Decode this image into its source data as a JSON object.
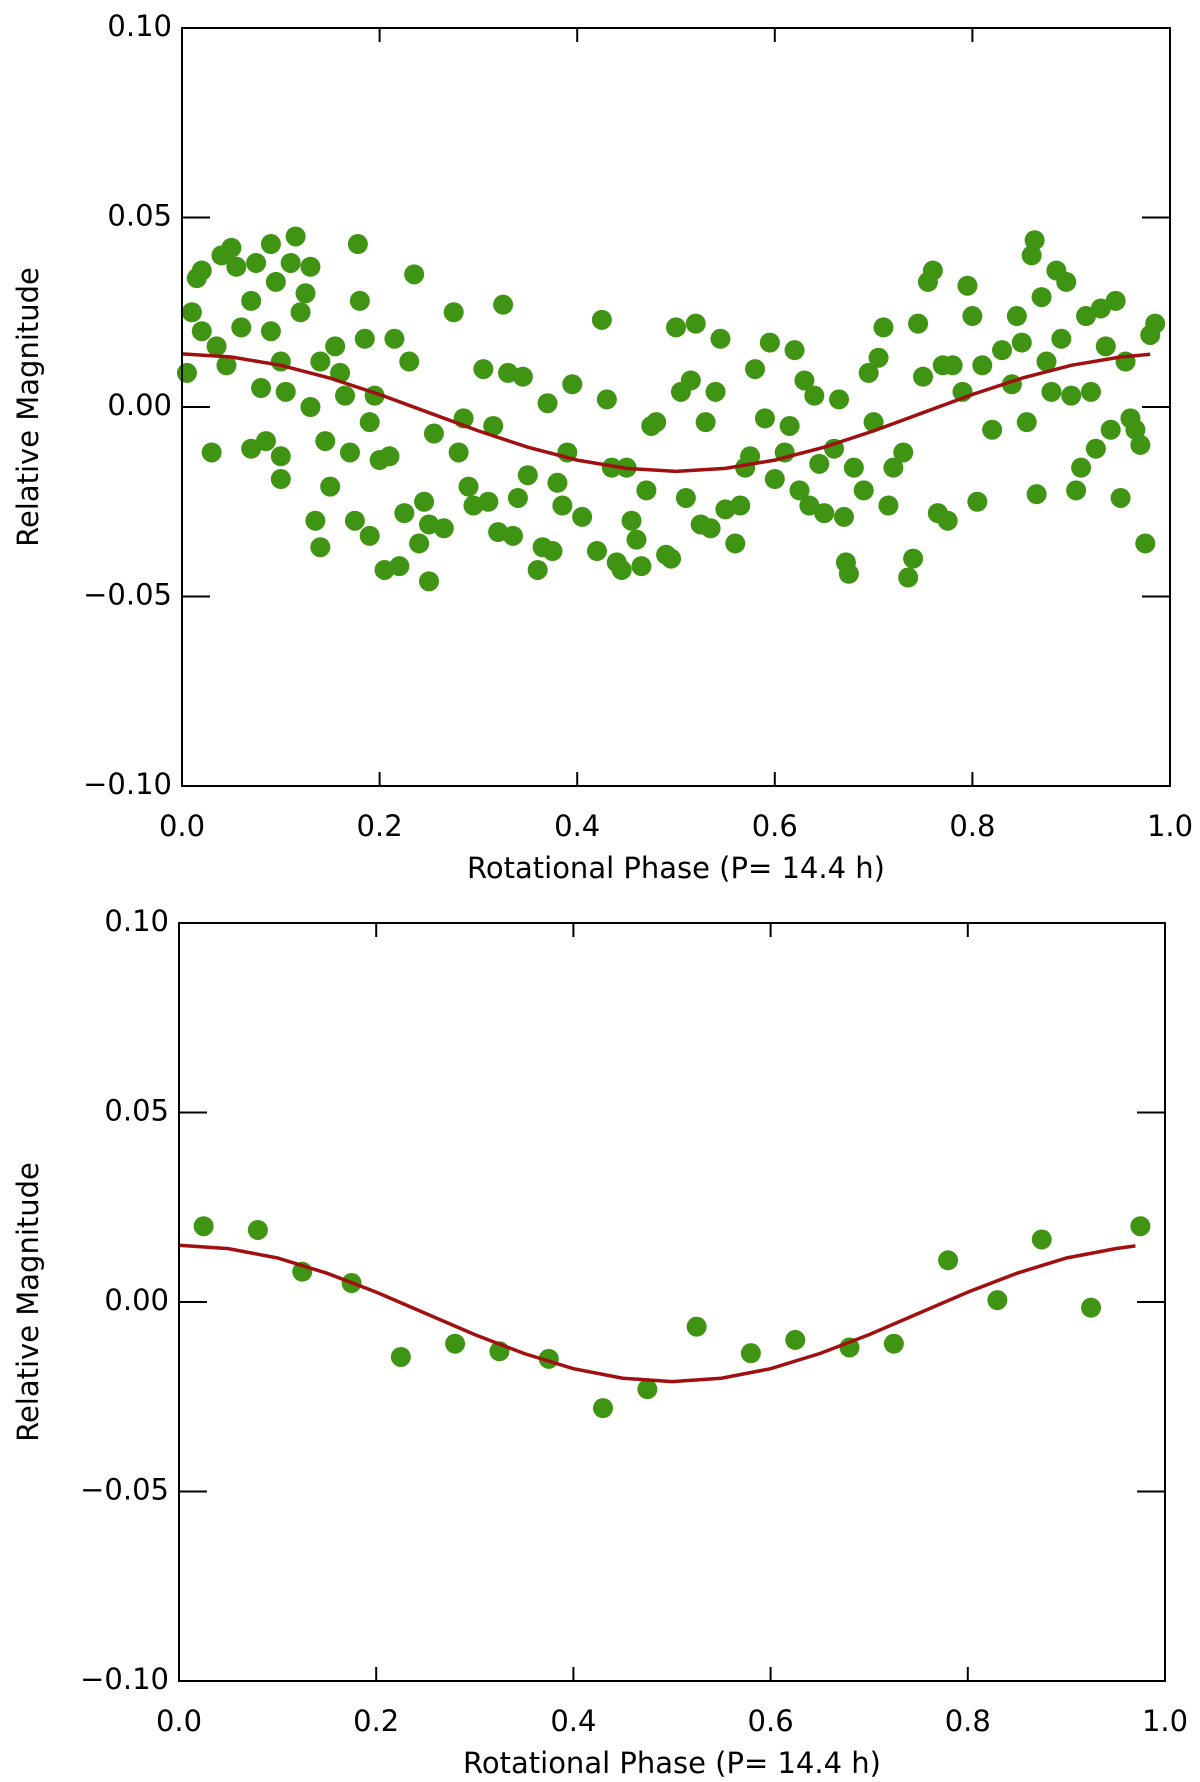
{
  "chart_data": [
    {
      "type": "scatter",
      "xlabel": "Rotational Phase (P= 14.4 h)",
      "ylabel": "Relative Magnitude",
      "xlim": [
        0,
        1
      ],
      "ylim": [
        -0.1,
        0.1
      ],
      "xticks": [
        {
          "value": 0,
          "label": "0.0"
        },
        {
          "value": 0.2,
          "label": "0.2"
        },
        {
          "value": 0.4,
          "label": "0.4"
        },
        {
          "value": 0.6,
          "label": "0.6"
        },
        {
          "value": 0.8,
          "label": "0.8"
        },
        {
          "value": 1,
          "label": "1.0"
        }
      ],
      "yticks": [
        {
          "value": -0.1,
          "label": "−0.10"
        },
        {
          "value": -0.05,
          "label": "−0.05"
        },
        {
          "value": 0,
          "label": "0.00"
        },
        {
          "value": 0.05,
          "label": "0.05"
        },
        {
          "value": 0.1,
          "label": "0.10"
        }
      ],
      "points": {
        "color": "#3f9413",
        "x": [
          0.005,
          0.01,
          0.015,
          0.02,
          0.02,
          0.03,
          0.035,
          0.04,
          0.045,
          0.05,
          0.055,
          0.06,
          0.07,
          0.07,
          0.075,
          0.08,
          0.085,
          0.09,
          0.09,
          0.095,
          0.1,
          0.1,
          0.1,
          0.105,
          0.11,
          0.115,
          0.12,
          0.125,
          0.13,
          0.13,
          0.135,
          0.14,
          0.14,
          0.145,
          0.15,
          0.155,
          0.16,
          0.165,
          0.17,
          0.175,
          0.178,
          0.18,
          0.185,
          0.19,
          0.19,
          0.195,
          0.2,
          0.205,
          0.21,
          0.215,
          0.22,
          0.225,
          0.23,
          0.235,
          0.24,
          0.245,
          0.25,
          0.25,
          0.255,
          0.265,
          0.275,
          0.28,
          0.285,
          0.29,
          0.295,
          0.305,
          0.31,
          0.315,
          0.32,
          0.325,
          0.33,
          0.335,
          0.34,
          0.345,
          0.35,
          0.36,
          0.365,
          0.37,
          0.375,
          0.38,
          0.385,
          0.39,
          0.395,
          0.405,
          0.42,
          0.425,
          0.43,
          0.435,
          0.44,
          0.445,
          0.45,
          0.455,
          0.46,
          0.465,
          0.47,
          0.475,
          0.48,
          0.49,
          0.495,
          0.5,
          0.505,
          0.51,
          0.515,
          0.52,
          0.525,
          0.53,
          0.535,
          0.54,
          0.545,
          0.55,
          0.56,
          0.565,
          0.57,
          0.575,
          0.58,
          0.59,
          0.595,
          0.6,
          0.61,
          0.615,
          0.62,
          0.625,
          0.63,
          0.635,
          0.64,
          0.645,
          0.65,
          0.66,
          0.665,
          0.67,
          0.672,
          0.675,
          0.68,
          0.69,
          0.695,
          0.7,
          0.705,
          0.71,
          0.715,
          0.72,
          0.73,
          0.735,
          0.74,
          0.745,
          0.75,
          0.755,
          0.76,
          0.765,
          0.77,
          0.775,
          0.78,
          0.79,
          0.795,
          0.8,
          0.805,
          0.81,
          0.82,
          0.83,
          0.84,
          0.845,
          0.85,
          0.855,
          0.86,
          0.863,
          0.865,
          0.87,
          0.875,
          0.88,
          0.885,
          0.89,
          0.895,
          0.9,
          0.905,
          0.91,
          0.915,
          0.92,
          0.925,
          0.93,
          0.935,
          0.94,
          0.945,
          0.95,
          0.955,
          0.96,
          0.965,
          0.97,
          0.975,
          0.98,
          0.985
        ],
        "values": [
          0.009,
          0.025,
          0.034,
          0.036,
          0.02,
          -0.012,
          0.016,
          0.04,
          0.011,
          0.042,
          0.037,
          0.021,
          0.028,
          -0.011,
          0.038,
          0.005,
          -0.009,
          0.043,
          0.02,
          0.033,
          0.012,
          -0.013,
          -0.019,
          0.004,
          0.038,
          0.045,
          0.025,
          0.03,
          0.037,
          0.0,
          -0.03,
          -0.037,
          0.012,
          -0.009,
          -0.021,
          0.016,
          0.009,
          0.003,
          -0.012,
          -0.03,
          0.043,
          0.028,
          0.018,
          -0.034,
          -0.004,
          0.003,
          -0.014,
          -0.043,
          -0.013,
          0.018,
          -0.042,
          -0.028,
          0.012,
          0.035,
          -0.036,
          -0.025,
          -0.046,
          -0.031,
          -0.007,
          -0.032,
          0.025,
          -0.012,
          -0.003,
          -0.021,
          -0.026,
          0.01,
          -0.025,
          -0.005,
          -0.033,
          0.027,
          0.009,
          -0.034,
          -0.024,
          0.008,
          -0.018,
          -0.043,
          -0.037,
          0.001,
          -0.038,
          -0.02,
          -0.026,
          -0.012,
          0.006,
          -0.029,
          -0.038,
          0.023,
          0.002,
          -0.016,
          -0.041,
          -0.043,
          -0.016,
          -0.03,
          -0.035,
          -0.042,
          -0.022,
          -0.005,
          -0.004,
          -0.039,
          -0.04,
          0.021,
          0.004,
          -0.024,
          0.007,
          0.022,
          -0.031,
          -0.004,
          -0.032,
          0.004,
          0.018,
          -0.027,
          -0.036,
          -0.026,
          -0.016,
          -0.013,
          0.01,
          -0.003,
          0.017,
          -0.019,
          -0.012,
          -0.005,
          0.015,
          -0.022,
          0.007,
          -0.026,
          0.003,
          -0.015,
          -0.028,
          -0.011,
          0.002,
          -0.029,
          -0.041,
          -0.044,
          -0.016,
          -0.022,
          0.009,
          -0.004,
          0.013,
          0.021,
          -0.026,
          -0.016,
          -0.012,
          -0.045,
          -0.04,
          0.022,
          0.008,
          0.033,
          0.036,
          -0.028,
          0.011,
          -0.03,
          0.011,
          0.004,
          0.032,
          0.024,
          -0.025,
          0.011,
          -0.006,
          0.015,
          0.006,
          0.024,
          0.017,
          -0.004,
          0.04,
          0.044,
          -0.023,
          0.029,
          0.012,
          0.004,
          0.036,
          0.018,
          0.033,
          0.003,
          -0.022,
          -0.016,
          0.024,
          0.004,
          -0.011,
          0.026,
          0.016,
          -0.006,
          0.028,
          -0.024,
          0.012,
          -0.003,
          -0.006,
          -0.01,
          -0.036,
          0.019,
          0.022
        ]
      },
      "fit": {
        "color": "#a01010",
        "x": [
          0,
          0.05,
          0.1,
          0.15,
          0.2,
          0.25,
          0.3,
          0.35,
          0.4,
          0.45,
          0.5,
          0.55,
          0.6,
          0.65,
          0.7,
          0.75,
          0.8,
          0.85,
          0.9,
          0.95,
          0.98
        ],
        "values": [
          0.014,
          0.0132,
          0.011,
          0.0076,
          0.0033,
          -0.0015,
          -0.0063,
          -0.0106,
          -0.014,
          -0.0162,
          -0.017,
          -0.0162,
          -0.014,
          -0.0106,
          -0.0063,
          -0.0015,
          0.0033,
          0.0076,
          0.011,
          0.0132,
          0.0139
        ]
      }
    },
    {
      "type": "scatter",
      "xlabel": "Rotational Phase (P= 14.4 h)",
      "ylabel": "Relative Magnitude",
      "xlim": [
        0,
        1
      ],
      "ylim": [
        -0.1,
        0.1
      ],
      "xticks": [
        {
          "value": 0,
          "label": "0.0"
        },
        {
          "value": 0.2,
          "label": "0.2"
        },
        {
          "value": 0.4,
          "label": "0.4"
        },
        {
          "value": 0.6,
          "label": "0.6"
        },
        {
          "value": 0.8,
          "label": "0.8"
        },
        {
          "value": 1,
          "label": "1.0"
        }
      ],
      "yticks": [
        {
          "value": -0.1,
          "label": "−0.10"
        },
        {
          "value": -0.05,
          "label": "−0.05"
        },
        {
          "value": 0,
          "label": "0.00"
        },
        {
          "value": 0.05,
          "label": "0.05"
        },
        {
          "value": 0.1,
          "label": "0.10"
        }
      ],
      "points": {
        "color": "#3f9413",
        "x": [
          0.025,
          0.08,
          0.125,
          0.175,
          0.225,
          0.28,
          0.325,
          0.375,
          0.43,
          0.475,
          0.525,
          0.58,
          0.625,
          0.68,
          0.725,
          0.78,
          0.83,
          0.875,
          0.925,
          0.975
        ],
        "values": [
          0.02,
          0.019,
          0.008,
          0.005,
          -0.0145,
          -0.011,
          -0.013,
          -0.015,
          -0.028,
          -0.023,
          -0.0065,
          -0.0135,
          -0.01,
          -0.012,
          -0.011,
          0.011,
          0.0005,
          0.0165,
          -0.0015,
          0.02
        ]
      },
      "fit": {
        "color": "#a01010",
        "x": [
          0,
          0.05,
          0.1,
          0.15,
          0.2,
          0.25,
          0.3,
          0.35,
          0.4,
          0.45,
          0.5,
          0.55,
          0.6,
          0.65,
          0.7,
          0.75,
          0.8,
          0.85,
          0.9,
          0.95,
          0.97
        ],
        "values": [
          0.015,
          0.0141,
          0.0116,
          0.0076,
          0.0026,
          -0.003,
          -0.0086,
          -0.0136,
          -0.0176,
          -0.0201,
          -0.021,
          -0.0201,
          -0.0176,
          -0.0136,
          -0.0086,
          -0.003,
          0.0026,
          0.0076,
          0.0116,
          0.0141,
          0.0148
        ]
      }
    }
  ]
}
